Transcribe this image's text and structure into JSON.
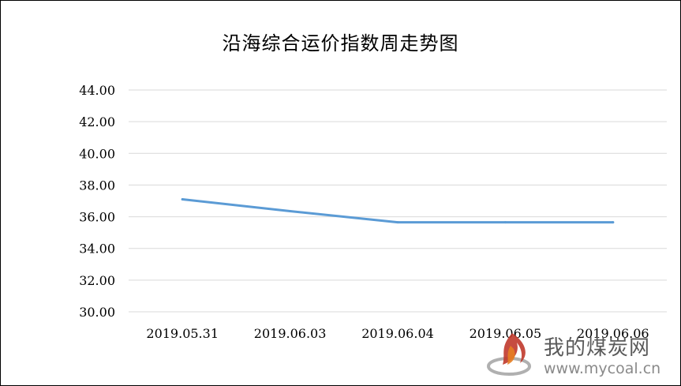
{
  "chart_data": {
    "type": "line",
    "title": "沿海综合运价指数周走势图",
    "categories": [
      "2019.05.31",
      "2019.06.03",
      "2019.06.04",
      "2019.06.05",
      "2019.06.06"
    ],
    "series": [
      {
        "values": [
          37.1,
          36.35,
          35.65,
          35.65,
          35.65
        ],
        "color": "#5b9bd5"
      }
    ],
    "ylim": [
      30,
      44
    ],
    "yticks": [
      "30.00",
      "32.00",
      "34.00",
      "36.00",
      "38.00",
      "40.00",
      "42.00",
      "44.00"
    ],
    "grid": true,
    "xlabel": "",
    "ylabel": ""
  },
  "watermark": {
    "name": "我的煤炭网",
    "url": "www.mycoal.cn",
    "logo_icon": "flame-logo-icon",
    "logo_color": "#c0392b"
  }
}
